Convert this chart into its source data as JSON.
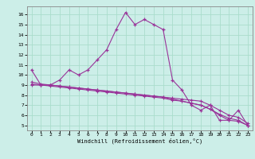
{
  "xlabel": "Windchill (Refroidissement éolien,°C)",
  "bg_color": "#cceee8",
  "grid_color": "#aaddcc",
  "line_color": "#993399",
  "x_ticks": [
    0,
    1,
    2,
    3,
    4,
    5,
    6,
    7,
    8,
    9,
    10,
    11,
    12,
    13,
    14,
    15,
    16,
    17,
    18,
    19,
    20,
    21,
    22,
    23
  ],
  "y_ticks": [
    5,
    6,
    7,
    8,
    9,
    10,
    11,
    12,
    13,
    14,
    15,
    16
  ],
  "ylim": [
    4.5,
    16.8
  ],
  "xlim": [
    -0.5,
    23.5
  ],
  "line1_x": [
    0,
    1,
    2,
    3,
    4,
    5,
    6,
    7,
    8,
    9,
    10,
    11,
    12,
    13,
    14,
    15,
    16,
    17,
    18,
    19,
    20,
    21,
    22,
    23
  ],
  "line1_y": [
    10.5,
    9.0,
    9.0,
    9.5,
    10.5,
    10.0,
    10.5,
    11.5,
    12.5,
    14.5,
    16.2,
    15.0,
    15.5,
    15.0,
    14.5,
    9.5,
    8.5,
    7.0,
    6.5,
    7.0,
    5.5,
    5.5,
    6.5,
    5.0
  ],
  "line2_x": [
    0,
    1,
    2,
    3,
    4,
    5,
    6,
    7,
    8,
    9,
    10,
    11,
    12,
    13,
    14,
    15,
    16,
    17,
    18,
    19,
    20,
    21,
    22,
    23
  ],
  "line2_y": [
    9.0,
    9.0,
    9.0,
    8.9,
    8.8,
    8.7,
    8.6,
    8.5,
    8.4,
    8.3,
    8.2,
    8.1,
    8.0,
    7.9,
    7.8,
    7.7,
    7.6,
    7.5,
    7.4,
    7.0,
    6.5,
    6.0,
    5.8,
    5.2
  ],
  "line3_x": [
    0,
    1,
    2,
    3,
    4,
    5,
    6,
    7,
    8,
    9,
    10,
    11,
    12,
    13,
    14,
    15,
    16,
    17,
    18,
    19,
    20,
    21,
    22,
    23
  ],
  "line3_y": [
    9.1,
    9.0,
    8.9,
    8.8,
    8.7,
    8.6,
    8.5,
    8.4,
    8.3,
    8.2,
    8.1,
    8.0,
    7.9,
    7.8,
    7.7,
    7.5,
    7.4,
    7.2,
    7.0,
    6.6,
    6.1,
    5.7,
    5.5,
    5.0
  ],
  "line4_x": [
    0,
    1,
    2,
    3,
    4,
    5,
    6,
    7,
    8,
    9,
    10,
    11,
    12,
    13,
    14,
    15,
    16,
    17,
    18,
    19,
    20,
    21,
    22,
    23
  ],
  "line4_y": [
    9.3,
    9.1,
    9.0,
    8.9,
    8.8,
    8.7,
    8.6,
    8.5,
    8.4,
    8.3,
    8.2,
    8.1,
    8.0,
    7.9,
    7.8,
    7.6,
    7.4,
    7.2,
    7.0,
    6.6,
    6.0,
    5.5,
    5.4,
    5.0
  ]
}
